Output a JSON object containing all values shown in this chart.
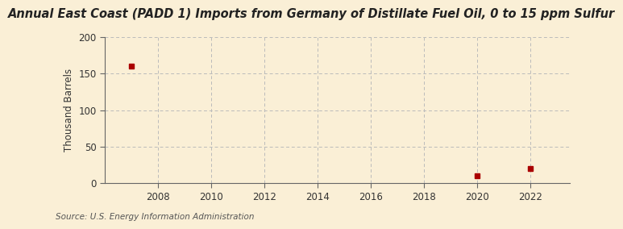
{
  "title": "Annual East Coast (PADD 1) Imports from Germany of Distillate Fuel Oil, 0 to 15 ppm Sulfur",
  "ylabel": "Thousand Barrels",
  "source": "Source: U.S. Energy Information Administration",
  "background_color": "#faefd6",
  "plot_background_color": "#faefd6",
  "data_points": [
    {
      "year": 2007,
      "value": 160
    },
    {
      "year": 2020,
      "value": 10
    },
    {
      "year": 2022,
      "value": 20
    }
  ],
  "xlim": [
    2006.0,
    2023.5
  ],
  "ylim": [
    0,
    200
  ],
  "yticks": [
    0,
    50,
    100,
    150,
    200
  ],
  "xticks": [
    2008,
    2010,
    2012,
    2014,
    2016,
    2018,
    2020,
    2022
  ],
  "marker_color": "#aa0000",
  "marker_size": 4,
  "grid_color": "#bbbbbb",
  "title_fontsize": 10.5,
  "label_fontsize": 8.5,
  "tick_fontsize": 8.5,
  "source_fontsize": 7.5
}
